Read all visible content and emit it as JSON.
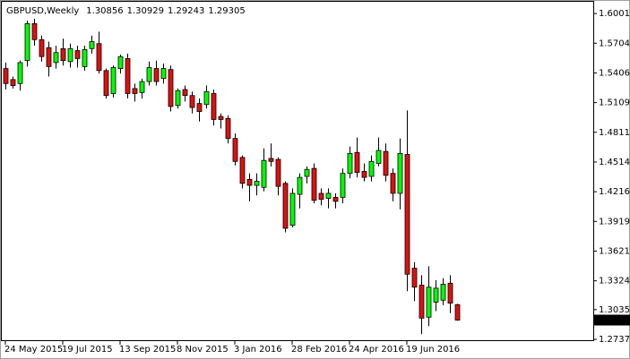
{
  "chart_data": {
    "type": "candlestick",
    "title": "GBPUSD,Weekly",
    "categories": [
      "24 May 2015",
      null,
      null,
      null,
      null,
      null,
      null,
      null,
      "19 Jul 2015",
      null,
      null,
      null,
      null,
      null,
      null,
      null,
      "13 Sep 2015",
      null,
      null,
      null,
      null,
      null,
      null,
      null,
      "8 Nov 2015",
      null,
      null,
      null,
      null,
      null,
      null,
      null,
      "3 Jan 2016",
      null,
      null,
      null,
      null,
      null,
      null,
      null,
      "28 Feb 2016",
      null,
      null,
      null,
      null,
      null,
      null,
      null,
      "24 Apr 2016",
      null,
      null,
      null,
      null,
      null,
      null,
      null,
      "19 Jun 2016",
      null,
      null,
      null,
      null,
      null,
      null,
      null
    ],
    "open": [
      1.545,
      1.534,
      1.53,
      1.553,
      1.59,
      1.574,
      1.566,
      1.551,
      1.565,
      1.552,
      1.563,
      1.547,
      1.565,
      1.57,
      1.543,
      1.52,
      1.545,
      1.555,
      1.525,
      1.521,
      1.532,
      1.545,
      1.535,
      1.544,
      1.508,
      1.524,
      1.518,
      1.51,
      1.509,
      1.52,
      1.497,
      1.495,
      1.475,
      1.456,
      1.434,
      1.428,
      1.426,
      1.455,
      1.454,
      1.43,
      1.388,
      1.419,
      1.437,
      1.445,
      1.42,
      1.415,
      1.416,
      1.416,
      1.44,
      1.461,
      1.442,
      1.437,
      1.45,
      1.462,
      1.44,
      1.42,
      1.459,
      1.345,
      1.328,
      1.296,
      1.311,
      1.313,
      1.33,
      1.30856
    ],
    "high": [
      1.551,
      1.537,
      1.553,
      1.593,
      1.595,
      1.578,
      1.572,
      1.568,
      1.575,
      1.57,
      1.568,
      1.568,
      1.578,
      1.582,
      1.545,
      1.548,
      1.559,
      1.56,
      1.53,
      1.535,
      1.552,
      1.553,
      1.55,
      1.548,
      1.525,
      1.528,
      1.522,
      1.515,
      1.528,
      1.524,
      1.5,
      1.498,
      1.48,
      1.458,
      1.44,
      1.44,
      1.465,
      1.47,
      1.456,
      1.432,
      1.425,
      1.44,
      1.447,
      1.45,
      1.425,
      1.425,
      1.42,
      1.445,
      1.467,
      1.476,
      1.45,
      1.458,
      1.476,
      1.47,
      1.445,
      1.475,
      1.503,
      1.351,
      1.338,
      1.347,
      1.333,
      1.335,
      1.338,
      1.30929
    ],
    "low": [
      1.524,
      1.525,
      1.523,
      1.547,
      1.568,
      1.552,
      1.537,
      1.545,
      1.548,
      1.546,
      1.546,
      1.543,
      1.56,
      1.54,
      1.515,
      1.516,
      1.54,
      1.515,
      1.512,
      1.515,
      1.528,
      1.528,
      1.53,
      1.502,
      1.505,
      1.512,
      1.5,
      1.492,
      1.505,
      1.488,
      1.485,
      1.47,
      1.448,
      1.425,
      1.412,
      1.418,
      1.422,
      1.447,
      1.418,
      1.381,
      1.386,
      1.405,
      1.43,
      1.41,
      1.408,
      1.405,
      1.405,
      1.41,
      1.435,
      1.436,
      1.432,
      1.432,
      1.447,
      1.432,
      1.412,
      1.404,
      1.322,
      1.312,
      1.279,
      1.287,
      1.302,
      1.308,
      1.3,
      1.29243
    ],
    "close": [
      1.53,
      1.528,
      1.551,
      1.59,
      1.574,
      1.557,
      1.547,
      1.561,
      1.553,
      1.565,
      1.555,
      1.564,
      1.572,
      1.543,
      1.518,
      1.546,
      1.557,
      1.52,
      1.52,
      1.532,
      1.546,
      1.532,
      1.545,
      1.507,
      1.523,
      1.518,
      1.506,
      1.502,
      1.522,
      1.494,
      1.494,
      1.475,
      1.452,
      1.43,
      1.428,
      1.432,
      1.453,
      1.452,
      1.427,
      1.385,
      1.42,
      1.436,
      1.444,
      1.413,
      1.414,
      1.42,
      1.412,
      1.44,
      1.46,
      1.441,
      1.436,
      1.452,
      1.463,
      1.438,
      1.42,
      1.46,
      1.339,
      1.326,
      1.295,
      1.326,
      1.325,
      1.329,
      1.31,
      1.29305
    ],
    "up_color": "#00ff00",
    "down_color": "#e01010",
    "ylim": [
      1.272,
      1.611
    ],
    "yticks": [
      1.60015,
      {
        "value": 1.5704,
        "label": "1.57040"
      },
      1.54065,
      {
        "value": 1.5109,
        "label": "1.51090"
      },
      1.48115,
      {
        "value": 1.4514,
        "label": "1.45140"
      },
      1.42165,
      {
        "value": 1.3919,
        "label": "1.39190"
      },
      1.36215,
      {
        "value": 1.3324,
        "label": "1.33240"
      },
      1.30355,
      1.27375
    ]
  }
}
